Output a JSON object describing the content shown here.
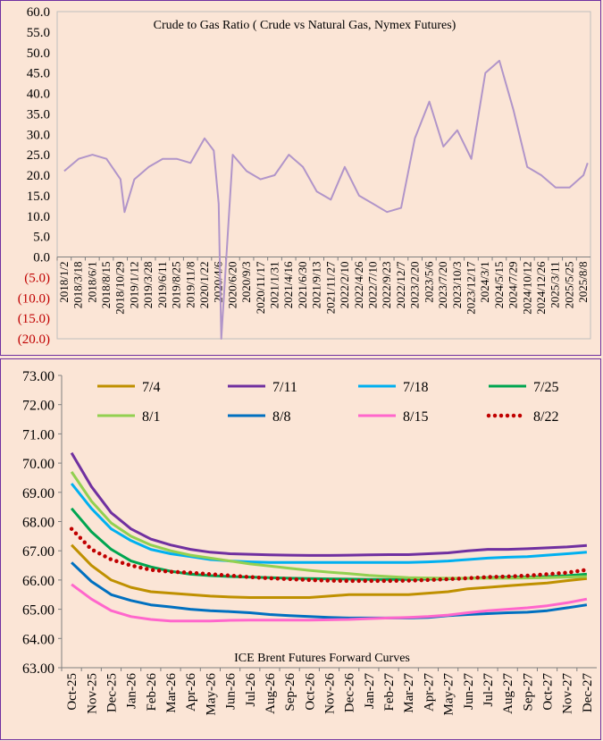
{
  "chart_data": [
    {
      "type": "line",
      "title": "Crude to Gas Ratio ( Crude vs Natural Gas, Nymex Futures)",
      "ylim": [
        -20,
        60
      ],
      "y_ticks": [
        "60.0",
        "55.0",
        "50.0",
        "45.0",
        "40.0",
        "35.0",
        "30.0",
        "25.0",
        "20.0",
        "15.0",
        "10.0",
        "5.0",
        "0.0",
        "(5.0)",
        "(10.0)",
        "(15.0)",
        "(20.0)"
      ],
      "x_ticks": [
        "2018/1/2",
        "2018/3/18",
        "2018/6/1",
        "2018/8/15",
        "2018/10/29",
        "2019/1/12",
        "2019/3/28",
        "2019/6/11",
        "2019/8/25",
        "2019/11/8",
        "2020/1/22",
        "2020/4/6",
        "2020/6/20",
        "2020/9/3",
        "2020/11/17",
        "2021/1/31",
        "2021/4/16",
        "2021/6/30",
        "2021/9/13",
        "2021/11/27",
        "2022/2/10",
        "2022/4/26",
        "2022/7/10",
        "2022/9/23",
        "2022/12/7",
        "2023/2/20",
        "2023/5/6",
        "2023/7/20",
        "2023/10/3",
        "2023/12/17",
        "2024/3/1",
        "2024/5/15",
        "2024/7/29",
        "2024/10/12",
        "2024/12/26",
        "2025/3/11",
        "2025/5/25",
        "2025/8/8"
      ],
      "negative_color": "#c00000",
      "line_color": "#b195c9",
      "grid": false,
      "series": [
        {
          "x": [
            "2018/1/2",
            "2018/3/18",
            "2018/6/1",
            "2018/8/15",
            "2018/10/29",
            "2018/11/20",
            "2019/1/12",
            "2019/3/28",
            "2019/6/11",
            "2019/8/25",
            "2019/11/8",
            "2020/1/22",
            "2020/3/10",
            "2020/4/6",
            "2020/4/20",
            "2020/6/20",
            "2020/9/3",
            "2020/11/17",
            "2021/1/31",
            "2021/4/16",
            "2021/6/30",
            "2021/9/13",
            "2021/11/27",
            "2022/2/10",
            "2022/4/26",
            "2022/7/10",
            "2022/9/23",
            "2022/12/7",
            "2023/2/20",
            "2023/5/6",
            "2023/7/20",
            "2023/10/3",
            "2023/12/17",
            "2024/3/1",
            "2024/5/15",
            "2024/7/29",
            "2024/10/12",
            "2024/12/26",
            "2025/3/11",
            "2025/5/25",
            "2025/8/8",
            "2025/8/30"
          ],
          "values": [
            21,
            24,
            25,
            24,
            19,
            11,
            19,
            22,
            24,
            24,
            23,
            29,
            26,
            13,
            -20,
            25,
            21,
            19,
            20,
            25,
            22,
            16,
            14,
            22,
            15,
            13,
            11,
            12,
            29,
            38,
            27,
            31,
            24,
            45,
            48,
            36,
            22,
            20,
            17,
            17,
            20,
            23
          ]
        }
      ]
    },
    {
      "type": "line",
      "title": "ICE Brent Futures Forward Curves",
      "ylim": [
        63,
        73
      ],
      "y_ticks": [
        "73.00",
        "72.00",
        "71.00",
        "70.00",
        "69.00",
        "68.00",
        "67.00",
        "66.00",
        "65.00",
        "64.00",
        "63.00"
      ],
      "categories": [
        "Oct-25",
        "Nov-25",
        "Dec-25",
        "Jan-26",
        "Feb-26",
        "Mar-26",
        "Apr-26",
        "May-26",
        "Jun-26",
        "Jul-26",
        "Aug-26",
        "Sep-26",
        "Oct-26",
        "Nov-26",
        "Dec-26",
        "Jan-27",
        "Feb-27",
        "Mar-27",
        "Apr-27",
        "May-27",
        "Jun-27",
        "Jul-27",
        "Aug-27",
        "Sep-27",
        "Oct-27",
        "Nov-27",
        "Dec-27"
      ],
      "grid": false,
      "legend_placement": "top",
      "series": [
        {
          "name": "7/4",
          "color": "#bf9000",
          "style": "solid",
          "values": [
            67.2,
            66.5,
            66.0,
            65.75,
            65.6,
            65.55,
            65.5,
            65.45,
            65.42,
            65.4,
            65.4,
            65.4,
            65.4,
            65.45,
            65.5,
            65.5,
            65.5,
            65.5,
            65.55,
            65.6,
            65.7,
            65.75,
            65.8,
            65.85,
            65.9,
            65.98,
            66.05
          ]
        },
        {
          "name": "7/11",
          "color": "#7030a0",
          "style": "solid",
          "values": [
            70.35,
            69.2,
            68.3,
            67.75,
            67.4,
            67.2,
            67.05,
            66.95,
            66.9,
            66.88,
            66.86,
            66.85,
            66.84,
            66.84,
            66.85,
            66.86,
            66.87,
            66.87,
            66.9,
            66.93,
            67.0,
            67.05,
            67.05,
            67.07,
            67.1,
            67.13,
            67.18
          ]
        },
        {
          "name": "7/18",
          "color": "#00b0f0",
          "style": "solid",
          "values": [
            69.3,
            68.45,
            67.75,
            67.35,
            67.05,
            66.9,
            66.8,
            66.7,
            66.65,
            66.62,
            66.6,
            66.6,
            66.6,
            66.6,
            66.6,
            66.6,
            66.6,
            66.6,
            66.62,
            66.65,
            66.7,
            66.75,
            66.78,
            66.8,
            66.85,
            66.9,
            66.95
          ]
        },
        {
          "name": "7/25",
          "color": "#00a550",
          "style": "solid",
          "values": [
            68.45,
            67.65,
            67.05,
            66.65,
            66.45,
            66.3,
            66.2,
            66.15,
            66.12,
            66.1,
            66.08,
            66.06,
            66.05,
            66.04,
            66.03,
            66.02,
            66.02,
            66.02,
            66.03,
            66.04,
            66.06,
            66.08,
            66.1,
            66.1,
            66.12,
            66.15,
            66.2
          ]
        },
        {
          "name": "8/1",
          "color": "#92d050",
          "style": "solid",
          "values": [
            69.7,
            68.7,
            67.95,
            67.5,
            67.2,
            67.0,
            66.85,
            66.75,
            66.65,
            66.55,
            66.48,
            66.4,
            66.33,
            66.27,
            66.22,
            66.16,
            66.12,
            66.08,
            66.07,
            66.06,
            66.06,
            66.06,
            66.06,
            66.07,
            66.08,
            66.1,
            66.12
          ]
        },
        {
          "name": "8/8",
          "color": "#0070c0",
          "style": "solid",
          "values": [
            66.6,
            65.95,
            65.5,
            65.3,
            65.15,
            65.08,
            65.0,
            64.95,
            64.92,
            64.88,
            64.82,
            64.78,
            64.75,
            64.72,
            64.7,
            64.7,
            64.7,
            64.7,
            64.72,
            64.78,
            64.82,
            64.85,
            64.88,
            64.9,
            64.95,
            65.05,
            65.15
          ]
        },
        {
          "name": "8/15",
          "color": "#ff66cc",
          "style": "solid",
          "values": [
            65.85,
            65.35,
            64.95,
            64.75,
            64.65,
            64.6,
            64.6,
            64.6,
            64.62,
            64.63,
            64.63,
            64.63,
            64.63,
            64.64,
            64.65,
            64.68,
            64.7,
            64.72,
            64.75,
            64.8,
            64.88,
            64.95,
            65.0,
            65.05,
            65.12,
            65.22,
            65.35
          ]
        },
        {
          "name": "8/22",
          "color": "#c00000",
          "style": "dotted",
          "values": [
            67.75,
            67.05,
            66.7,
            66.5,
            66.35,
            66.28,
            66.25,
            66.2,
            66.15,
            66.1,
            66.06,
            66.03,
            66.0,
            65.98,
            65.97,
            65.97,
            65.97,
            65.98,
            66.0,
            66.03,
            66.06,
            66.1,
            66.12,
            66.15,
            66.2,
            66.25,
            66.35
          ]
        }
      ]
    }
  ]
}
